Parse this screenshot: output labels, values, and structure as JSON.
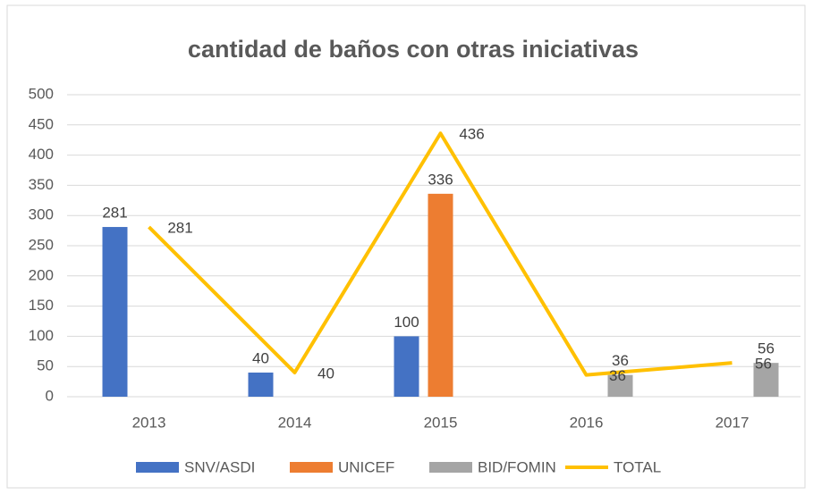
{
  "chart_data": {
    "type": "bar",
    "title": "cantidad de baños con otras iniciativas",
    "categories": [
      "2013",
      "2014",
      "2015",
      "2016",
      "2017"
    ],
    "series": [
      {
        "name": "SNV/ASDI",
        "color": "#4472c4",
        "type": "bar",
        "values": [
          281,
          40,
          100,
          null,
          null
        ]
      },
      {
        "name": "UNICEF",
        "color": "#ed7d31",
        "type": "bar",
        "values": [
          null,
          null,
          336,
          null,
          null
        ]
      },
      {
        "name": "BID/FOMIN",
        "color": "#a5a5a5",
        "type": "bar",
        "values": [
          null,
          null,
          null,
          36,
          56
        ]
      },
      {
        "name": "TOTAL",
        "color": "#ffc000",
        "type": "line",
        "values": [
          281,
          40,
          436,
          36,
          56
        ]
      }
    ],
    "ylim": [
      0,
      500
    ],
    "yticks": [
      0,
      50,
      100,
      150,
      200,
      250,
      300,
      350,
      400,
      450,
      500
    ],
    "grid": true,
    "legend": "bottom"
  }
}
